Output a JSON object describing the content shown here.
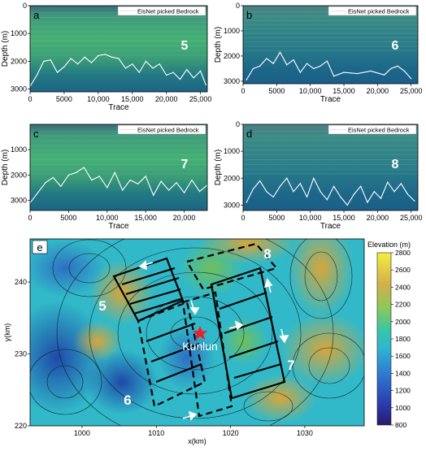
{
  "chart_data": [
    {
      "type": "line",
      "panel_letter": "a",
      "line_number": "5",
      "legend": "EisNet picked Bedrock",
      "xlabel": "Trace",
      "ylabel": "Depth (m)",
      "xlim": [
        0,
        26000
      ],
      "ylim": [
        3100,
        0
      ],
      "xticks": [
        0,
        5000,
        10000,
        15000,
        20000,
        25000
      ],
      "xtick_labels": [
        "0",
        "5000",
        "10,000",
        "15,000",
        "20,000",
        "25,000"
      ],
      "yticks": [
        0,
        1000,
        2000,
        3000
      ],
      "ytick_labels": [
        "0",
        "1000",
        "2000",
        "3000"
      ],
      "series": [
        {
          "x": [
            0,
            1000,
            2000,
            3000,
            4000,
            5000,
            6000,
            7000,
            8000,
            9000,
            10000,
            11000,
            12000,
            13000,
            14000,
            15000,
            16000,
            17000,
            18000,
            19000,
            20000,
            21000,
            22000,
            23000,
            24000,
            25000,
            25800
          ],
          "y": [
            2900,
            2500,
            2000,
            1950,
            2400,
            2200,
            1900,
            2100,
            1850,
            2050,
            1800,
            1750,
            1850,
            1900,
            2250,
            2100,
            2400,
            2000,
            2250,
            2100,
            2500,
            2400,
            2650,
            2300,
            2600,
            2350,
            2850
          ]
        }
      ]
    },
    {
      "type": "line",
      "panel_letter": "b",
      "line_number": "6",
      "legend": "EisNet picked Bedrock",
      "xlabel": "Trace",
      "ylabel": "Depth (m)",
      "xlim": [
        0,
        26000
      ],
      "ylim": [
        3100,
        0
      ],
      "xticks": [
        0,
        5000,
        10000,
        15000,
        20000,
        25000
      ],
      "xtick_labels": [
        "0",
        "5000",
        "10,000",
        "15,000",
        "20,000",
        "25,000"
      ],
      "yticks": [
        0,
        1000,
        2000,
        3000
      ],
      "ytick_labels": [
        "0",
        "1000",
        "2000",
        "3000"
      ],
      "series": [
        {
          "x": [
            500,
            1500,
            2500,
            3500,
            4500,
            5500,
            6500,
            7500,
            8500,
            9500,
            10500,
            11500,
            12500,
            13500,
            15000,
            17000,
            19000,
            21000,
            22000,
            23000,
            24000,
            25000
          ],
          "y": [
            2950,
            2500,
            2400,
            2100,
            2300,
            1850,
            2350,
            2150,
            2650,
            2300,
            2500,
            2400,
            2200,
            2800,
            2650,
            2700,
            2600,
            2750,
            2500,
            2400,
            2600,
            2900
          ]
        }
      ]
    },
    {
      "type": "line",
      "panel_letter": "c",
      "line_number": "7",
      "legend": "EisNet picked Bedrock",
      "xlabel": "Trace",
      "ylabel": "Depth (m)",
      "xlim": [
        0,
        23000
      ],
      "ylim": [
        3400,
        0
      ],
      "xticks": [
        0,
        5000,
        10000,
        15000,
        20000
      ],
      "xtick_labels": [
        "0",
        "5000",
        "10,000",
        "15,000",
        "20,000"
      ],
      "yticks": [
        1000,
        2000,
        3000
      ],
      "ytick_labels": [
        "1000",
        "2000",
        "3000"
      ],
      "series": [
        {
          "x": [
            0,
            1000,
            2000,
            3000,
            4000,
            5000,
            6000,
            7000,
            8000,
            9000,
            10000,
            11000,
            12000,
            13000,
            14000,
            15000,
            16000,
            17000,
            18000,
            19000,
            20000,
            21000,
            22000,
            23000
          ],
          "y": [
            3100,
            2700,
            2300,
            2100,
            2450,
            2000,
            1900,
            1700,
            2200,
            2050,
            2500,
            1900,
            2600,
            2200,
            2350,
            2050,
            2800,
            2250,
            2600,
            2300,
            2700,
            2200,
            2650,
            2400
          ]
        }
      ]
    },
    {
      "type": "line",
      "panel_letter": "d",
      "line_number": "8",
      "legend": "EisNet picked Bedrock",
      "xlabel": "Trace",
      "ylabel": "Depth (m)",
      "xlim": [
        0,
        26000
      ],
      "ylim": [
        3200,
        0
      ],
      "xticks": [
        0,
        5000,
        10000,
        15000,
        20000,
        25000
      ],
      "xtick_labels": [
        "0",
        "5000",
        "10,000",
        "15,000",
        "20,000",
        "25,000"
      ],
      "yticks": [
        0,
        1000,
        2000,
        3000
      ],
      "ytick_labels": [
        "0",
        "1000",
        "2000",
        "3000"
      ],
      "series": [
        {
          "x": [
            500,
            1500,
            2500,
            3500,
            4500,
            5500,
            6500,
            7500,
            8500,
            9500,
            10500,
            11500,
            12500,
            13500,
            14500,
            15500,
            16500,
            17500,
            18500,
            19500,
            20500,
            21500,
            22500,
            23500,
            24500,
            25500
          ],
          "y": [
            2900,
            2400,
            2100,
            2500,
            2700,
            2300,
            2000,
            2500,
            2200,
            2700,
            2000,
            2500,
            2800,
            2300,
            2700,
            3000,
            2600,
            2300,
            2900,
            2500,
            2750,
            2150,
            2500,
            2200,
            2600,
            2850
          ]
        }
      ]
    },
    {
      "type": "heatmap",
      "panel_letter": "e",
      "xlabel": "x(km)",
      "ylabel": "y(km)",
      "xlim": [
        993,
        1038
      ],
      "ylim": [
        220,
        246
      ],
      "xticks": [
        1000,
        1010,
        1020,
        1030
      ],
      "yticks": [
        220,
        230,
        240
      ],
      "colorbar_label": "Elevation (m)",
      "colorbar_ticks": [
        800,
        1000,
        1200,
        1400,
        1600,
        1800,
        2000,
        2200,
        2400,
        2600,
        2800
      ],
      "station_label": "Kunlun",
      "line_labels": [
        "5",
        "6",
        "7",
        "8"
      ]
    }
  ]
}
